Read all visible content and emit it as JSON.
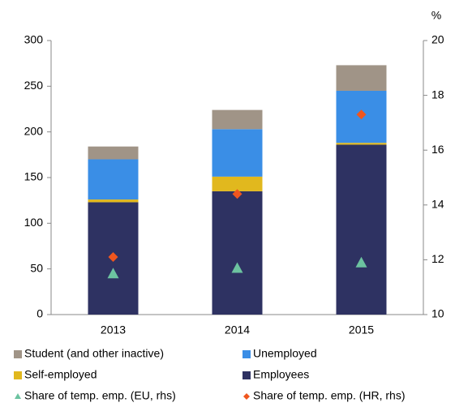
{
  "chart_data": {
    "type": "bar",
    "stacked": true,
    "categories": [
      "2013",
      "2014",
      "2015"
    ],
    "y2_unit": "%",
    "series": [
      {
        "name": "Employees",
        "color": "#2e3262",
        "values": [
          123,
          135,
          186
        ]
      },
      {
        "name": "Self-employed",
        "color": "#e1b81e",
        "values": [
          3,
          16,
          2
        ]
      },
      {
        "name": "Unemployed",
        "color": "#3a8ee6",
        "values": [
          44,
          52,
          57
        ]
      },
      {
        "name": "Student (and other inactive)",
        "color": "#a09487",
        "values": [
          14,
          21,
          28
        ]
      },
      {
        "name": "Share of temp. emp. (EU, rhs)",
        "type": "scatter",
        "marker": "triangle",
        "axis": "y2",
        "color": "#6cc3a0",
        "values": [
          11.5,
          11.7,
          11.9
        ]
      },
      {
        "name": "Share of temp. emp. (HR, rhs)",
        "type": "scatter",
        "marker": "diamond",
        "axis": "y2",
        "color": "#f0561e",
        "values": [
          12.1,
          14.4,
          17.3
        ]
      }
    ],
    "ylim": [
      0,
      300
    ],
    "yticks": [
      0,
      50,
      100,
      150,
      200,
      250,
      300
    ],
    "y2lim": [
      10,
      20
    ],
    "y2ticks": [
      10,
      12,
      14,
      16,
      18,
      20
    ],
    "legend": "bottom"
  }
}
